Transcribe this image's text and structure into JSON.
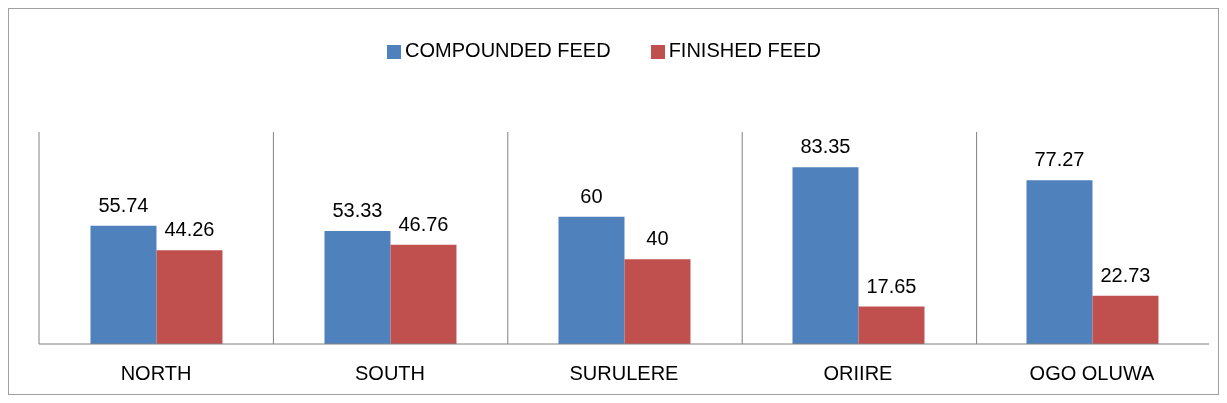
{
  "chart_data": {
    "type": "bar",
    "categories": [
      "NORTH",
      "SOUTH",
      "SURULERE",
      "ORIIRE",
      "OGO OLUWA"
    ],
    "series": [
      {
        "name": "COMPOUNDED FEED",
        "color": "#4f81bd",
        "values": [
          55.74,
          53.33,
          60,
          83.35,
          77.27
        ]
      },
      {
        "name": "FINISHED FEED",
        "color": "#c0504d",
        "values": [
          44.26,
          46.76,
          40,
          17.65,
          22.73
        ]
      }
    ],
    "data_labels": true,
    "grid": "x",
    "legend": "top"
  }
}
